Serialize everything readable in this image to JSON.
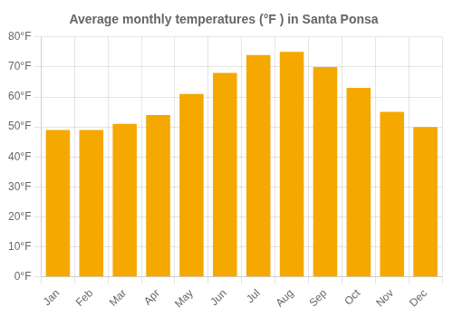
{
  "chart_data": {
    "type": "bar",
    "title": "Average monthly temperatures (°F ) in Santa Ponsa",
    "categories": [
      "Jan",
      "Feb",
      "Mar",
      "Apr",
      "May",
      "Jun",
      "Jul",
      "Aug",
      "Sep",
      "Oct",
      "Nov",
      "Dec"
    ],
    "values": [
      49,
      49,
      51,
      54,
      61,
      68,
      74,
      75,
      70,
      63,
      55,
      50
    ],
    "color": "#F5A800",
    "ylim": [
      0,
      80
    ],
    "yticks": [
      {
        "value": 0,
        "label": "0°F"
      },
      {
        "value": 10,
        "label": "10°F"
      },
      {
        "value": 20,
        "label": "20°F"
      },
      {
        "value": 30,
        "label": "30°F"
      },
      {
        "value": 40,
        "label": "40°F"
      },
      {
        "value": 50,
        "label": "50°F"
      },
      {
        "value": 60,
        "label": "60°F"
      },
      {
        "value": 70,
        "label": "70°F"
      },
      {
        "value": 80,
        "label": "80°F"
      }
    ],
    "grid": true
  }
}
